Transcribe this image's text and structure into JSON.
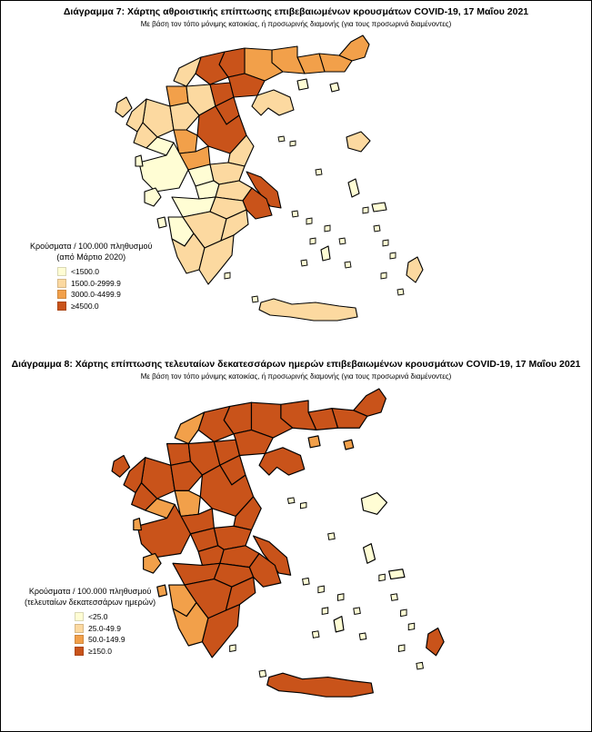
{
  "map1": {
    "title": "Διάγραμμα 7: Χάρτης αθροιστικής επίπτωσης επιβεβαιωμένων κρουσμάτων COVID-19, 17 Μαΐου 2021",
    "subtitle": "Με βάση τον τόπο μόνιμης κατοικίας, ή προσωρινής διαμονής (για τους προσωρινά διαμένοντες)",
    "legend": {
      "heading_line1": "Κρούσματα / 100.000 πληθυσμού",
      "heading_line2": "(από Μάρτιο 2020)",
      "items": [
        {
          "label": "<1500.0",
          "color": "#FFFDD4"
        },
        {
          "label": "1500.0-2999.9",
          "color": "#FCD9A0"
        },
        {
          "label": "3000.0-4499.9",
          "color": "#F2A04A"
        },
        {
          "label": "≥4500.0",
          "color": "#C9531A"
        }
      ]
    }
  },
  "map2": {
    "title": "Διάγραμμα 8: Χάρτης επίπτωσης τελευταίων δεκατεσσάρων ημερών επιβεβαιωμένων κρουσμάτων COVID-19, 17 Μαΐου 2021",
    "subtitle": "Με βάση τον τόπο μόνιμης κατοικίας, ή προσωρινής διαμονής (για τους προσωρινά διαμένοντες)",
    "legend": {
      "heading_line1": "Κρούσματα / 100.000 πληθυσμού",
      "heading_line2": "(τελευταίων δεκατεσσάρων ημερών)",
      "items": [
        {
          "label": "<25.0",
          "color": "#FFFDD4"
        },
        {
          "label": "25.0-49.9",
          "color": "#FCD9A0"
        },
        {
          "label": "50.0-149.9",
          "color": "#F2A04A"
        },
        {
          "label": "≥150.0",
          "color": "#C9531A"
        }
      ]
    }
  }
}
